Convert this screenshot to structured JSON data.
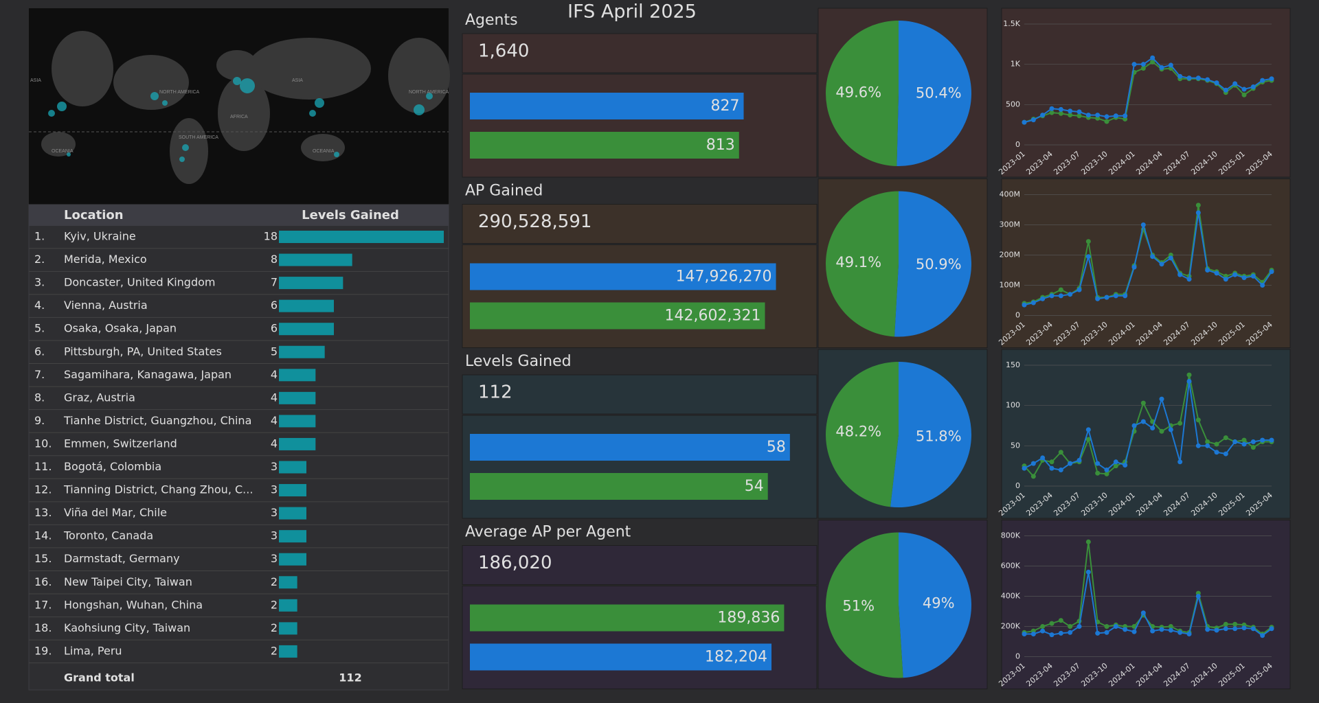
{
  "title": "IFS April 2025",
  "map": {
    "labels": [
      "NORTH AMERICA",
      "SOUTH AMERICA",
      "AFRICA",
      "ASIA",
      "OCEANIA",
      "ASIA",
      "NORTH AMERICA",
      "OCEANIA"
    ]
  },
  "table": {
    "columns": [
      "Location",
      "Levels Gained"
    ],
    "color": "#10909c",
    "xlim": [
      0,
      18
    ],
    "rows": [
      [
        "1.",
        "Kyiv, Ukraine",
        18
      ],
      [
        "2.",
        "Merida, Mexico",
        8
      ],
      [
        "3.",
        "Doncaster, United Kingdom",
        7
      ],
      [
        "4.",
        "Vienna, Austria",
        6
      ],
      [
        "5.",
        "Osaka, Osaka, Japan",
        6
      ],
      [
        "6.",
        "Pittsburgh, PA, United States",
        5
      ],
      [
        "7.",
        "Sagamihara, Kanagawa, Japan",
        4
      ],
      [
        "8.",
        "Graz, Austria",
        4
      ],
      [
        "9.",
        "Tianhe District, Guangzhou, China",
        4
      ],
      [
        "10.",
        "Emmen, Switzerland",
        4
      ],
      [
        "11.",
        "Bogotá, Colombia",
        3
      ],
      [
        "12.",
        "Tianning District, Chang Zhou, C...",
        3
      ],
      [
        "13.",
        "Viña del Mar, Chile",
        3
      ],
      [
        "14.",
        "Toronto, Canada",
        3
      ],
      [
        "15.",
        "Darmstadt, Germany",
        3
      ],
      [
        "16.",
        "New Taipei City, Taiwan",
        2
      ],
      [
        "17.",
        "Hongshan, Wuhan, China",
        2
      ],
      [
        "18.",
        "Kaohsiung City, Taiwan",
        2
      ],
      [
        "19.",
        "Lima, Peru",
        2
      ]
    ],
    "total_label": "Grand total",
    "total": 112
  },
  "panels": [
    {
      "title": "Agents",
      "kpi": "1,640",
      "background": "#3c2d2d"
    },
    {
      "title": "AP Gained",
      "kpi": "290,528,591",
      "background": "#3c3129"
    },
    {
      "title": "Levels Gained",
      "kpi": "112",
      "background": "#27343a"
    },
    {
      "title": "Average AP per Agent",
      "kpi": "186,020",
      "background": "#2f2838"
    }
  ],
  "chart_data": [
    {
      "type": "bar",
      "categories": [
        null,
        null
      ],
      "values": [
        827,
        813
      ],
      "value_labels": [
        "827",
        "813"
      ],
      "colors": [
        "#1c78d4",
        "#3a8f3a"
      ],
      "xlim": [
        0,
        1050
      ]
    },
    {
      "type": "pie",
      "values": [
        50.4,
        49.6
      ],
      "value_labels": [
        "50.4%",
        "49.6%"
      ],
      "colors": [
        "#1c78d4",
        "#3a8f3a"
      ]
    },
    {
      "type": "line",
      "x": [
        "2023-01",
        "2023-02",
        "2023-03",
        "2023-04",
        "2023-05",
        "2023-06",
        "2023-07",
        "2023-08",
        "2023-09",
        "2023-10",
        "2023-11",
        "2023-12",
        "2024-01",
        "2024-02",
        "2024-03",
        "2024-04",
        "2024-05",
        "2024-06",
        "2024-07",
        "2024-08",
        "2024-09",
        "2024-10",
        "2024-11",
        "2024-12",
        "2025-01",
        "2025-02",
        "2025-03",
        "2025-04"
      ],
      "xticks": [
        "2023-01",
        "2023-04",
        "2023-07",
        "2023-10",
        "2024-01",
        "2024-04",
        "2024-07",
        "2024-10",
        "2025-01",
        "2025-04"
      ],
      "ylim": [
        0,
        1500
      ],
      "yticks": [
        0,
        500,
        {
          "value": 1000,
          "label": "1K"
        },
        {
          "value": 1500,
          "label": "1.5K"
        }
      ],
      "grid": true,
      "series": [
        {
          "color": "#3a8f3a",
          "values": [
            280,
            320,
            360,
            400,
            390,
            370,
            360,
            340,
            330,
            290,
            340,
            320,
            900,
            950,
            1030,
            940,
            950,
            820,
            820,
            820,
            800,
            760,
            650,
            740,
            620,
            700,
            780,
            800
          ]
        },
        {
          "color": "#1c78d4",
          "values": [
            280,
            310,
            370,
            450,
            440,
            420,
            410,
            370,
            370,
            350,
            360,
            360,
            1000,
            1000,
            1080,
            960,
            990,
            850,
            830,
            830,
            810,
            770,
            680,
            760,
            690,
            720,
            800,
            820
          ]
        }
      ]
    },
    {
      "type": "bar",
      "categories": [
        null,
        null
      ],
      "values": [
        147926270,
        142602321
      ],
      "value_labels": [
        "147,926,270",
        "142,602,321"
      ],
      "colors": [
        "#1c78d4",
        "#3a8f3a"
      ],
      "xlim": [
        0,
        168000000
      ]
    },
    {
      "type": "pie",
      "values": [
        50.9,
        49.1
      ],
      "value_labels": [
        "50.9%",
        "49.1%"
      ],
      "colors": [
        "#1c78d4",
        "#3a8f3a"
      ]
    },
    {
      "type": "line",
      "x": [
        "2023-01",
        "2023-02",
        "2023-03",
        "2023-04",
        "2023-05",
        "2023-06",
        "2023-07",
        "2023-08",
        "2023-09",
        "2023-10",
        "2023-11",
        "2023-12",
        "2024-01",
        "2024-02",
        "2024-03",
        "2024-04",
        "2024-05",
        "2024-06",
        "2024-07",
        "2024-08",
        "2024-09",
        "2024-10",
        "2024-11",
        "2024-12",
        "2025-01",
        "2025-02",
        "2025-03",
        "2025-04"
      ],
      "xticks": [
        "2023-01",
        "2023-04",
        "2023-07",
        "2023-10",
        "2024-01",
        "2024-04",
        "2024-07",
        "2024-10",
        "2025-01",
        "2025-04"
      ],
      "ylim": [
        0,
        400000000
      ],
      "yticks": [
        0,
        {
          "value": 100000000,
          "label": "100M"
        },
        {
          "value": 200000000,
          "label": "200M"
        },
        {
          "value": 300000000,
          "label": "300M"
        },
        {
          "value": 400000000,
          "label": "400M"
        }
      ],
      "grid": true,
      "series": [
        {
          "color": "#3a8f3a",
          "values": [
            40000000.0,
            45000000.0,
            60000000.0,
            70000000.0,
            85000000.0,
            70000000.0,
            90000000.0,
            245000000.0,
            60000000.0,
            60000000.0,
            70000000.0,
            70000000.0,
            165000000.0,
            285000000.0,
            200000000.0,
            175000000.0,
            200000000.0,
            140000000.0,
            130000000.0,
            365000000.0,
            155000000.0,
            145000000.0,
            130000000.0,
            140000000.0,
            130000000.0,
            135000000.0,
            110000000.0,
            150000000.0
          ]
        },
        {
          "color": "#1c78d4",
          "values": [
            35000000.0,
            42000000.0,
            55000000.0,
            65000000.0,
            65000000.0,
            70000000.0,
            85000000.0,
            195000000.0,
            55000000.0,
            60000000.0,
            65000000.0,
            65000000.0,
            160000000.0,
            300000000.0,
            195000000.0,
            170000000.0,
            190000000.0,
            135000000.0,
            120000000.0,
            340000000.0,
            150000000.0,
            140000000.0,
            120000000.0,
            135000000.0,
            125000000.0,
            130000000.0,
            100000000.0,
            145000000.0
          ]
        }
      ]
    },
    {
      "type": "bar",
      "categories": [
        null,
        null
      ],
      "values": [
        58,
        54
      ],
      "value_labels": [
        "58",
        "54"
      ],
      "colors": [
        "#1c78d4",
        "#3a8f3a"
      ],
      "xlim": [
        0,
        63
      ]
    },
    {
      "type": "pie",
      "values": [
        51.8,
        48.2
      ],
      "value_labels": [
        "51.8%",
        "48.2%"
      ],
      "colors": [
        "#1c78d4",
        "#3a8f3a"
      ]
    },
    {
      "type": "line",
      "x": [
        "2023-01",
        "2023-02",
        "2023-03",
        "2023-04",
        "2023-05",
        "2023-06",
        "2023-07",
        "2023-08",
        "2023-09",
        "2023-10",
        "2023-11",
        "2023-12",
        "2024-01",
        "2024-02",
        "2024-03",
        "2024-04",
        "2024-05",
        "2024-06",
        "2024-07",
        "2024-08",
        "2024-09",
        "2024-10",
        "2024-11",
        "2024-12",
        "2025-01",
        "2025-02",
        "2025-03",
        "2025-04"
      ],
      "xticks": [
        "2023-01",
        "2023-04",
        "2023-07",
        "2023-10",
        "2024-01",
        "2024-04",
        "2024-07",
        "2024-10",
        "2025-01",
        "2025-04"
      ],
      "ylim": [
        0,
        150
      ],
      "yticks": [
        0,
        50,
        100,
        150
      ],
      "grid": true,
      "series": [
        {
          "color": "#3a8f3a",
          "values": [
            25,
            12,
            32,
            30,
            42,
            28,
            30,
            58,
            16,
            15,
            25,
            30,
            68,
            103,
            80,
            68,
            75,
            78,
            138,
            82,
            55,
            52,
            60,
            55,
            57,
            48,
            55,
            55
          ]
        },
        {
          "color": "#1c78d4",
          "values": [
            22,
            28,
            35,
            22,
            20,
            28,
            32,
            70,
            28,
            20,
            30,
            26,
            75,
            80,
            72,
            108,
            70,
            30,
            130,
            50,
            50,
            42,
            40,
            55,
            52,
            55,
            57,
            57
          ]
        }
      ]
    },
    {
      "type": "bar",
      "categories": [
        null,
        null
      ],
      "values": [
        189836,
        182204
      ],
      "value_labels": [
        "189,836",
        "182,204"
      ],
      "colors": [
        "#3a8f3a",
        "#1c78d4"
      ],
      "xlim": [
        0,
        210000
      ]
    },
    {
      "type": "pie",
      "values": [
        49,
        51
      ],
      "value_labels": [
        "49%",
        "51%"
      ],
      "colors": [
        "#1c78d4",
        "#3a8f3a"
      ]
    },
    {
      "type": "line",
      "x": [
        "2023-01",
        "2023-02",
        "2023-03",
        "2023-04",
        "2023-05",
        "2023-06",
        "2023-07",
        "2023-08",
        "2023-09",
        "2023-10",
        "2023-11",
        "2023-12",
        "2024-01",
        "2024-02",
        "2024-03",
        "2024-04",
        "2024-05",
        "2024-06",
        "2024-07",
        "2024-08",
        "2024-09",
        "2024-10",
        "2024-11",
        "2024-12",
        "2025-01",
        "2025-02",
        "2025-03",
        "2025-04"
      ],
      "xticks": [
        "2023-01",
        "2023-04",
        "2023-07",
        "2023-10",
        "2024-01",
        "2024-04",
        "2024-07",
        "2024-10",
        "2025-01",
        "2025-04"
      ],
      "ylim": [
        0,
        800000
      ],
      "yticks": [
        0,
        {
          "value": 200000,
          "label": "200K"
        },
        {
          "value": 400000,
          "label": "400K"
        },
        {
          "value": 600000,
          "label": "600K"
        },
        {
          "value": 800000,
          "label": "800K"
        }
      ],
      "grid": true,
      "series": [
        {
          "color": "#3a8f3a",
          "values": [
            160000,
            170000,
            200000,
            220000,
            240000,
            200000,
            235000,
            760000,
            230000,
            200000,
            210000,
            200000,
            200000,
            275000,
            200000,
            195000,
            200000,
            170000,
            160000,
            420000,
            200000,
            190000,
            215000,
            215000,
            210000,
            195000,
            150000,
            195000
          ]
        },
        {
          "color": "#1c78d4",
          "values": [
            150000,
            150000,
            170000,
            145000,
            155000,
            160000,
            200000,
            560000,
            155000,
            160000,
            200000,
            180000,
            165000,
            290000,
            170000,
            180000,
            175000,
            160000,
            150000,
            400000,
            180000,
            175000,
            185000,
            185000,
            190000,
            185000,
            140000,
            185000
          ]
        }
      ]
    }
  ]
}
